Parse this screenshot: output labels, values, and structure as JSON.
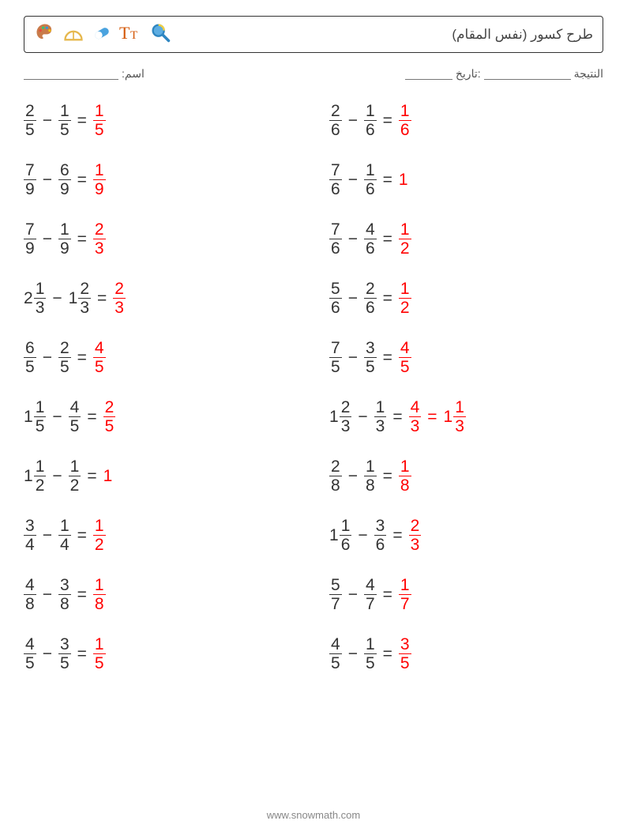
{
  "header": {
    "title": "طرح كسور (نفس المقام)",
    "icons": [
      "palette-icon",
      "protractor-icon",
      "pill-icon",
      "text-icon",
      "magnifier-icon"
    ]
  },
  "info": {
    "name_label": "اسم:",
    "score_label": "النتيجة",
    "date_label": ":تاريخ"
  },
  "style": {
    "font_size_problem": 21,
    "answer_color": "#ff0000",
    "text_color": "#333333",
    "border_color": "#333333",
    "row_gap": 30,
    "col_gap": 40,
    "footer_color": "#888888",
    "blank_line_color": "#777777"
  },
  "columns": [
    [
      {
        "terms": [
          {
            "n": 2,
            "d": 5
          },
          {
            "n": 1,
            "d": 5
          }
        ],
        "answer": [
          {
            "n": 1,
            "d": 5
          }
        ]
      },
      {
        "terms": [
          {
            "n": 7,
            "d": 9
          },
          {
            "n": 6,
            "d": 9
          }
        ],
        "answer": [
          {
            "n": 1,
            "d": 9
          }
        ]
      },
      {
        "terms": [
          {
            "n": 7,
            "d": 9
          },
          {
            "n": 1,
            "d": 9
          }
        ],
        "answer": [
          {
            "n": 2,
            "d": 3
          }
        ]
      },
      {
        "terms": [
          {
            "w": 2,
            "n": 1,
            "d": 3
          },
          {
            "w": 1,
            "n": 2,
            "d": 3
          }
        ],
        "answer": [
          {
            "n": 2,
            "d": 3
          }
        ]
      },
      {
        "terms": [
          {
            "n": 6,
            "d": 5
          },
          {
            "n": 2,
            "d": 5
          }
        ],
        "answer": [
          {
            "n": 4,
            "d": 5
          }
        ]
      },
      {
        "terms": [
          {
            "w": 1,
            "n": 1,
            "d": 5
          },
          {
            "n": 4,
            "d": 5
          }
        ],
        "answer": [
          {
            "n": 2,
            "d": 5
          }
        ]
      },
      {
        "terms": [
          {
            "w": 1,
            "n": 1,
            "d": 2
          },
          {
            "n": 1,
            "d": 2
          }
        ],
        "answer": [
          {
            "int": 1
          }
        ]
      },
      {
        "terms": [
          {
            "n": 3,
            "d": 4
          },
          {
            "n": 1,
            "d": 4
          }
        ],
        "answer": [
          {
            "n": 1,
            "d": 2
          }
        ]
      },
      {
        "terms": [
          {
            "n": 4,
            "d": 8
          },
          {
            "n": 3,
            "d": 8
          }
        ],
        "answer": [
          {
            "n": 1,
            "d": 8
          }
        ]
      },
      {
        "terms": [
          {
            "n": 4,
            "d": 5
          },
          {
            "n": 3,
            "d": 5
          }
        ],
        "answer": [
          {
            "n": 1,
            "d": 5
          }
        ]
      }
    ],
    [
      {
        "terms": [
          {
            "n": 2,
            "d": 6
          },
          {
            "n": 1,
            "d": 6
          }
        ],
        "answer": [
          {
            "n": 1,
            "d": 6
          }
        ]
      },
      {
        "terms": [
          {
            "n": 7,
            "d": 6
          },
          {
            "n": 1,
            "d": 6
          }
        ],
        "answer": [
          {
            "int": 1
          }
        ]
      },
      {
        "terms": [
          {
            "n": 7,
            "d": 6
          },
          {
            "n": 4,
            "d": 6
          }
        ],
        "answer": [
          {
            "n": 1,
            "d": 2
          }
        ]
      },
      {
        "terms": [
          {
            "n": 5,
            "d": 6
          },
          {
            "n": 2,
            "d": 6
          }
        ],
        "answer": [
          {
            "n": 1,
            "d": 2
          }
        ]
      },
      {
        "terms": [
          {
            "n": 7,
            "d": 5
          },
          {
            "n": 3,
            "d": 5
          }
        ],
        "answer": [
          {
            "n": 4,
            "d": 5
          }
        ]
      },
      {
        "terms": [
          {
            "w": 1,
            "n": 2,
            "d": 3
          },
          {
            "n": 1,
            "d": 3
          }
        ],
        "answer": [
          {
            "n": 4,
            "d": 3
          },
          {
            "w": 1,
            "n": 1,
            "d": 3
          }
        ]
      },
      {
        "terms": [
          {
            "n": 2,
            "d": 8
          },
          {
            "n": 1,
            "d": 8
          }
        ],
        "answer": [
          {
            "n": 1,
            "d": 8
          }
        ]
      },
      {
        "terms": [
          {
            "w": 1,
            "n": 1,
            "d": 6
          },
          {
            "n": 3,
            "d": 6
          }
        ],
        "answer": [
          {
            "n": 2,
            "d": 3
          }
        ]
      },
      {
        "terms": [
          {
            "n": 5,
            "d": 7
          },
          {
            "n": 4,
            "d": 7
          }
        ],
        "answer": [
          {
            "n": 1,
            "d": 7
          }
        ]
      },
      {
        "terms": [
          {
            "n": 4,
            "d": 5
          },
          {
            "n": 1,
            "d": 5
          }
        ],
        "answer": [
          {
            "n": 3,
            "d": 5
          }
        ]
      }
    ]
  ],
  "footer": {
    "url": "www.snowmath.com"
  }
}
